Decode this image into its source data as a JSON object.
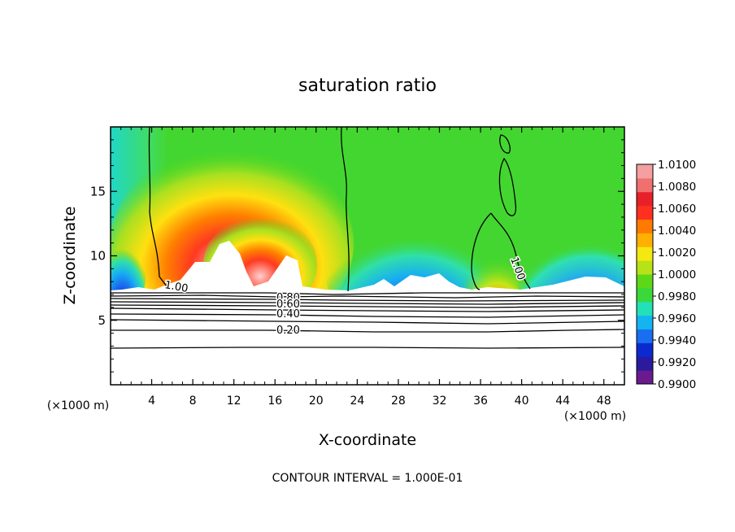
{
  "chart_data": {
    "type": "heatmap",
    "title": "saturation ratio",
    "xlabel": "X-coordinate",
    "ylabel": "Z-coordinate",
    "x_unit": "(×1000 m)",
    "y_unit": "(×1000 m)",
    "xlim": [
      0,
      50
    ],
    "ylim": [
      0,
      20
    ],
    "x_ticks": [
      4,
      8,
      12,
      16,
      20,
      24,
      28,
      32,
      36,
      40,
      44,
      48
    ],
    "y_ticks": [
      5,
      10,
      15
    ],
    "footer": "CONTOUR INTERVAL = 1.000E-01",
    "colorbar": {
      "min": 0.99,
      "max": 1.01,
      "tick_labels": [
        "1.0100",
        "1.0080",
        "1.0060",
        "1.0040",
        "1.0020",
        "1.0000",
        "0.9980",
        "0.9960",
        "0.9940",
        "0.9920",
        "0.9900"
      ],
      "colors": [
        "#6a1a8e",
        "#2a1a9e",
        "#0a2ad0",
        "#1a6ff0",
        "#14b4f0",
        "#22e0b8",
        "#3ad83a",
        "#5cd818",
        "#b8e218",
        "#f4e810",
        "#ffb000",
        "#ff7a00",
        "#ff3020",
        "#e8202a",
        "#f07070",
        "#f4a0a0"
      ]
    },
    "contour_labels": [
      "1.00",
      "1.00",
      "0.80",
      "0.60",
      "0.40",
      "0.20"
    ],
    "contour_label_values": [
      1.0,
      1.0,
      0.8,
      0.6,
      0.4,
      0.2
    ]
  }
}
